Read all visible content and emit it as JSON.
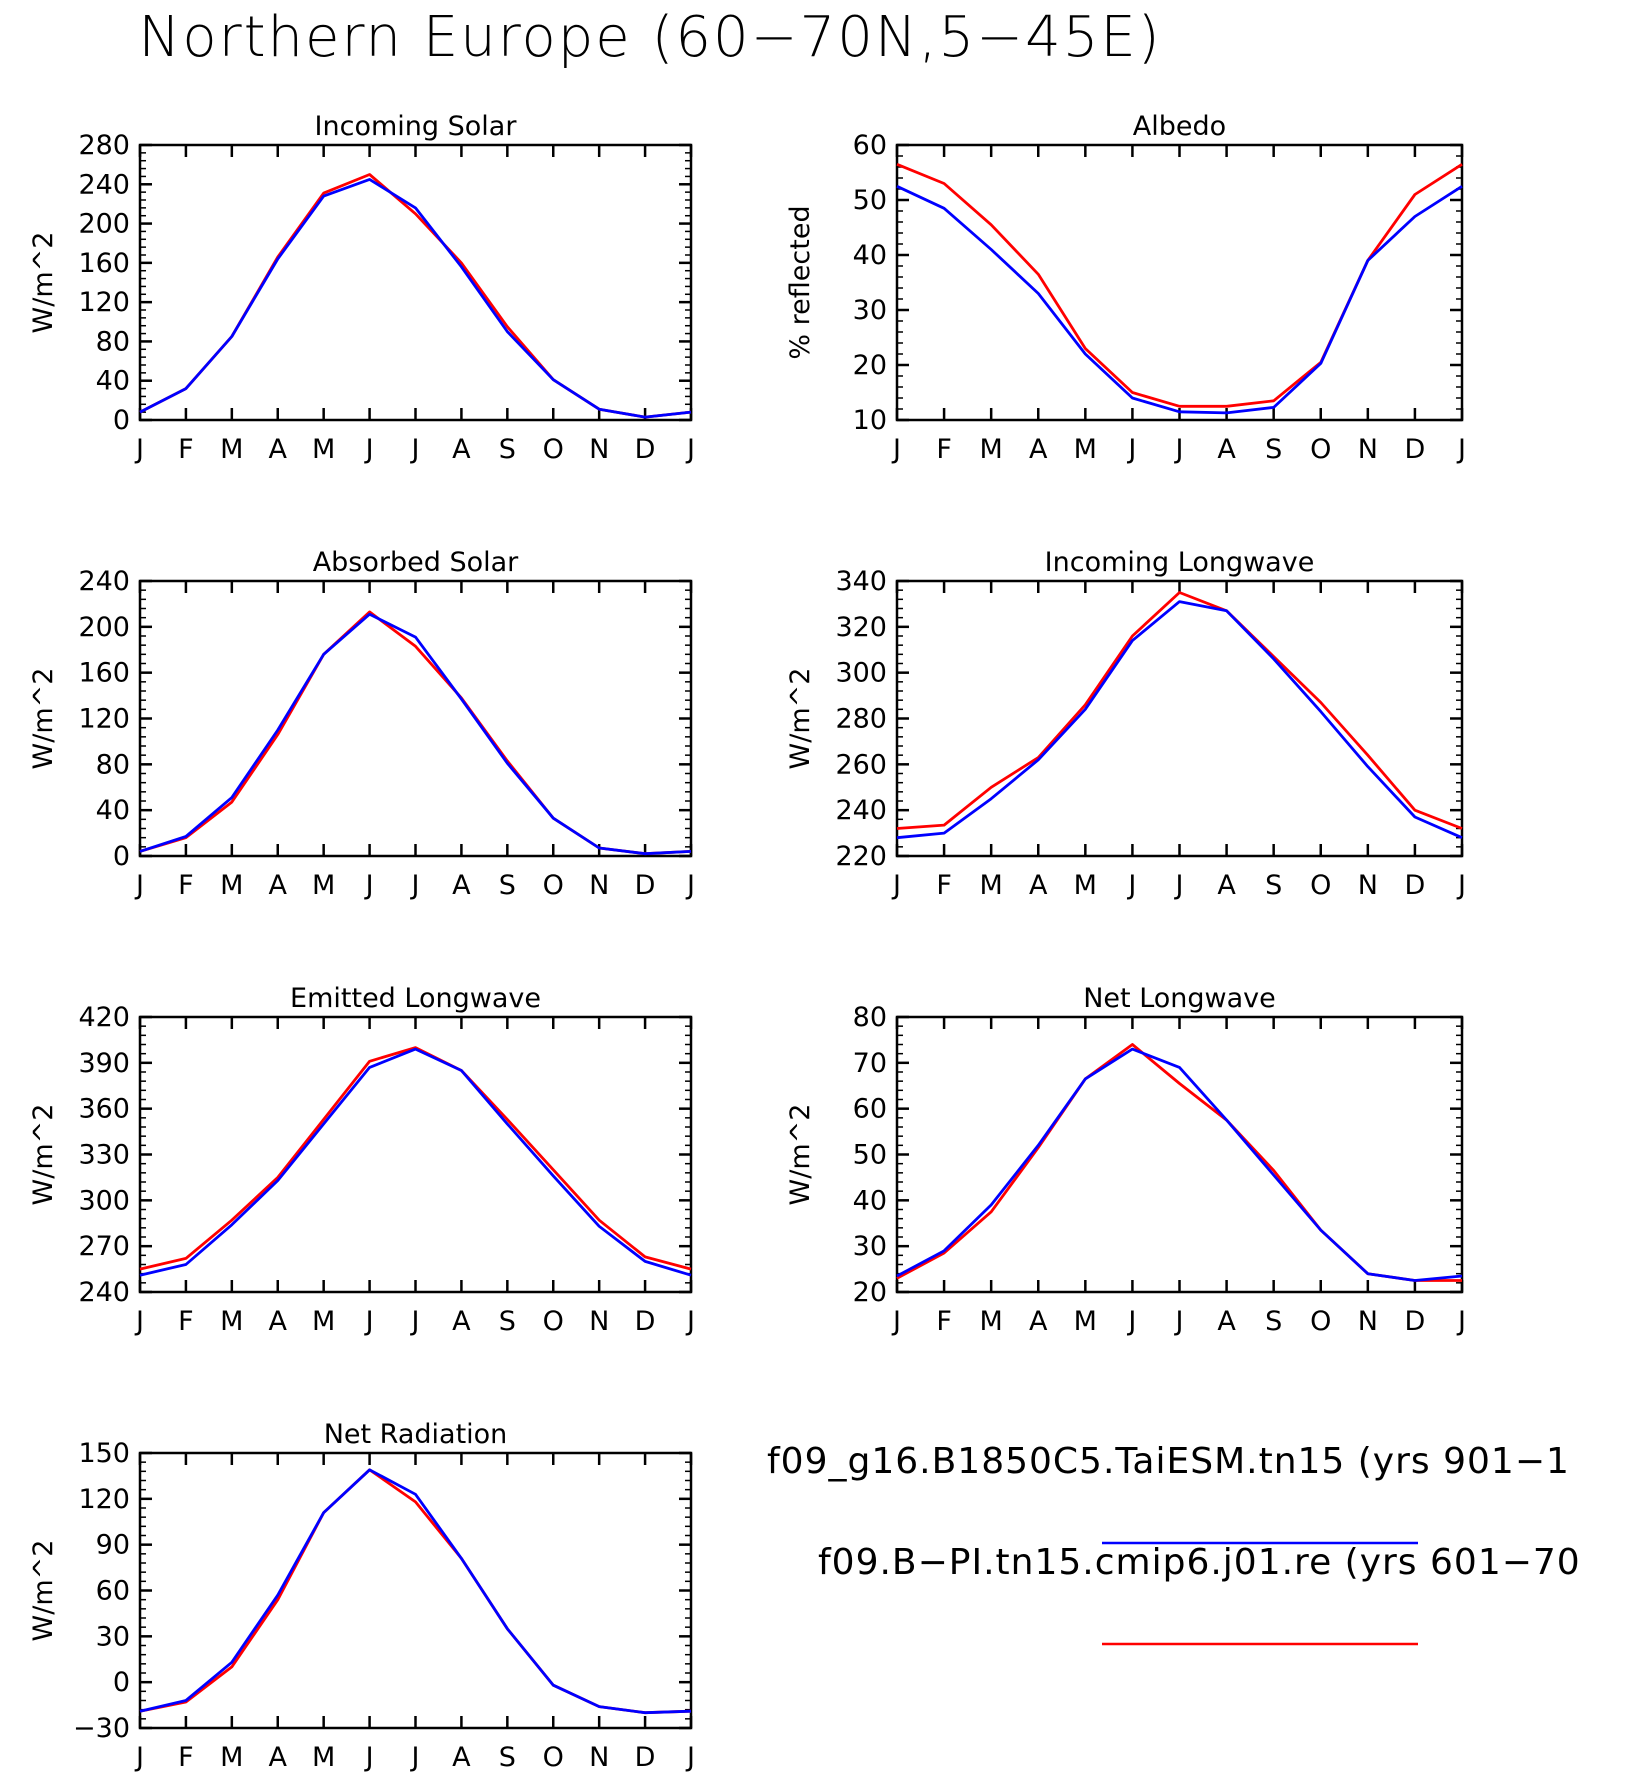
{
  "figure_title": "Northern Europe (60−70N,5−45E)",
  "legend": [
    {
      "label": "f09_g16.B1850C5.TaiESM.tn15 (yrs 901−1",
      "color": "#0000ff"
    },
    {
      "label": "f09.B−PI.tn15.cmip6.j01.re (yrs 601−70",
      "color": "#ff0000"
    }
  ],
  "chart_data": [
    {
      "type": "line",
      "title": "Incoming Solar",
      "ylabel": "W/m^2",
      "x": [
        "J",
        "F",
        "M",
        "A",
        "M",
        "J",
        "J",
        "A",
        "S",
        "O",
        "N",
        "D",
        "J"
      ],
      "ylim": [
        0,
        280
      ],
      "yticks": [
        0,
        40,
        80,
        120,
        160,
        200,
        240,
        280
      ],
      "series": [
        {
          "color": "#ff0000",
          "values": [
            8,
            32,
            85,
            166,
            231,
            250,
            210,
            160,
            95,
            41,
            11,
            3,
            8
          ]
        },
        {
          "color": "#0000ff",
          "values": [
            8,
            32,
            85,
            164,
            228,
            245,
            216,
            156,
            90,
            41,
            11,
            3,
            8
          ]
        }
      ]
    },
    {
      "type": "line",
      "title": "Albedo",
      "ylabel": "% reflected",
      "x": [
        "J",
        "F",
        "M",
        "A",
        "M",
        "J",
        "J",
        "A",
        "S",
        "O",
        "N",
        "D",
        "J"
      ],
      "ylim": [
        10,
        60
      ],
      "yticks": [
        10,
        20,
        30,
        40,
        50,
        60
      ],
      "series": [
        {
          "color": "#ff0000",
          "values": [
            56.5,
            53,
            45.5,
            36.5,
            23,
            15,
            12.5,
            12.5,
            13.5,
            20.5,
            39,
            51,
            56.5
          ]
        },
        {
          "color": "#0000ff",
          "values": [
            52.5,
            48.5,
            41,
            33,
            22,
            14,
            11.5,
            11.3,
            12.3,
            20.3,
            39,
            47,
            52.5
          ]
        }
      ]
    },
    {
      "type": "line",
      "title": "Absorbed Solar",
      "ylabel": "W/m^2",
      "x": [
        "J",
        "F",
        "M",
        "A",
        "M",
        "J",
        "J",
        "A",
        "S",
        "O",
        "N",
        "D",
        "J"
      ],
      "ylim": [
        0,
        240
      ],
      "yticks": [
        0,
        40,
        80,
        120,
        160,
        200,
        240
      ],
      "series": [
        {
          "color": "#ff0000",
          "values": [
            4,
            16,
            47,
            106,
            176,
            213,
            183,
            138,
            83,
            33,
            7,
            2,
            4
          ]
        },
        {
          "color": "#0000ff",
          "values": [
            4,
            17,
            51,
            110,
            176,
            211,
            191,
            137,
            81,
            33,
            7,
            2,
            4
          ]
        }
      ]
    },
    {
      "type": "line",
      "title": "Incoming Longwave",
      "ylabel": "W/m^2",
      "x": [
        "J",
        "F",
        "M",
        "A",
        "M",
        "J",
        "J",
        "A",
        "S",
        "O",
        "N",
        "D",
        "J"
      ],
      "ylim": [
        220,
        340
      ],
      "yticks": [
        220,
        240,
        260,
        280,
        300,
        320,
        340
      ],
      "series": [
        {
          "color": "#ff0000",
          "values": [
            232,
            233.5,
            250,
            263,
            286,
            316,
            335,
            327,
            307,
            287,
            264,
            240,
            232
          ]
        },
        {
          "color": "#0000ff",
          "values": [
            228,
            230,
            245,
            262,
            284,
            314,
            331,
            327,
            306,
            283,
            259,
            237,
            228
          ]
        }
      ]
    },
    {
      "type": "line",
      "title": "Emitted Longwave",
      "ylabel": "W/m^2",
      "x": [
        "J",
        "F",
        "M",
        "A",
        "M",
        "J",
        "J",
        "A",
        "S",
        "O",
        "N",
        "D",
        "J"
      ],
      "ylim": [
        240,
        420
      ],
      "yticks": [
        240,
        270,
        300,
        330,
        360,
        390,
        420
      ],
      "series": [
        {
          "color": "#ff0000",
          "values": [
            255,
            262,
            287,
            315,
            353,
            391,
            400,
            385,
            353,
            320,
            287,
            263,
            255
          ]
        },
        {
          "color": "#0000ff",
          "values": [
            251,
            258,
            284,
            313,
            350,
            387,
            399,
            385,
            350,
            316,
            283,
            260,
            251
          ]
        }
      ]
    },
    {
      "type": "line",
      "title": "Net Longwave",
      "ylabel": "W/m^2",
      "x": [
        "J",
        "F",
        "M",
        "A",
        "M",
        "J",
        "J",
        "A",
        "S",
        "O",
        "N",
        "D",
        "J"
      ],
      "ylim": [
        20,
        80
      ],
      "yticks": [
        20,
        30,
        40,
        50,
        60,
        70,
        80
      ],
      "series": [
        {
          "color": "#ff0000",
          "values": [
            23,
            28.5,
            37.5,
            51.5,
            66.5,
            74,
            65.5,
            57.5,
            46.5,
            33.5,
            24,
            22.5,
            22.5
          ]
        },
        {
          "color": "#0000ff",
          "values": [
            23.5,
            29,
            39,
            52,
            66.5,
            73,
            69,
            57.5,
            45.5,
            33.5,
            24,
            22.5,
            23.5
          ]
        }
      ]
    },
    {
      "type": "line",
      "title": "Net Radiation",
      "ylabel": "W/m^2",
      "x": [
        "J",
        "F",
        "M",
        "A",
        "M",
        "J",
        "J",
        "A",
        "S",
        "O",
        "N",
        "D",
        "J"
      ],
      "ylim": [
        -30,
        150
      ],
      "yticks": [
        -30,
        0,
        30,
        60,
        90,
        120,
        150
      ],
      "series": [
        {
          "color": "#ff0000",
          "values": [
            -19,
            -13,
            10,
            54,
            111,
            139,
            118,
            81,
            35,
            -2,
            -16,
            -20,
            -19
          ]
        },
        {
          "color": "#0000ff",
          "values": [
            -19,
            -12,
            13,
            57,
            111,
            139,
            123,
            81,
            35,
            -2,
            -16,
            -20,
            -19
          ]
        }
      ]
    }
  ]
}
